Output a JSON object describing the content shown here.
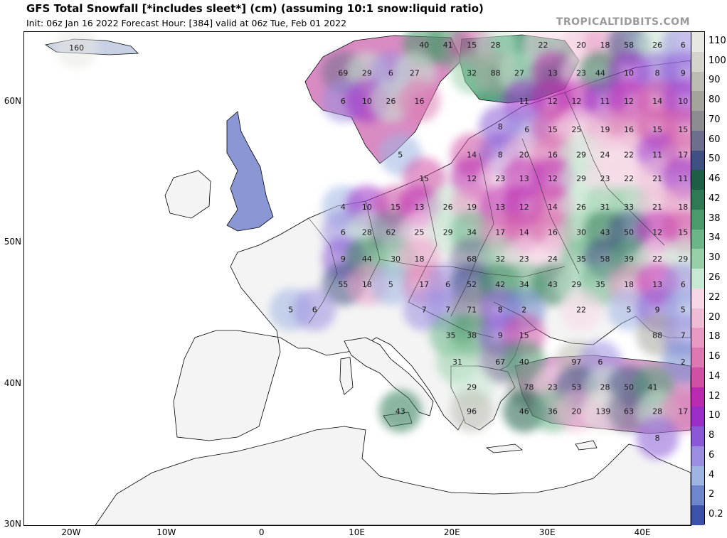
{
  "header": {
    "title": "GFS Total Snowfall [*includes sleet*] (cm) (assuming 10:1 snow:liquid ratio)",
    "subtitle": "Init: 06z Jan 16 2022   Forecast Hour: [384]   valid at 06z Tue, Feb 01 2022",
    "brand": "TROPICALTIDBITS.COM"
  },
  "map": {
    "lon_range": [
      -25,
      45
    ],
    "lat_range": [
      30,
      65
    ],
    "lat_ticks": [
      {
        "label": "60N",
        "lat": 60
      },
      {
        "label": "50N",
        "lat": 50
      },
      {
        "label": "40N",
        "lat": 40
      },
      {
        "label": "30N",
        "lat": 30
      }
    ],
    "lon_ticks": [
      {
        "label": "20W",
        "lon": -20
      },
      {
        "label": "10W",
        "lon": -10
      },
      {
        "label": "0",
        "lon": 0
      },
      {
        "label": "10E",
        "lon": 10
      },
      {
        "label": "20E",
        "lon": 20
      },
      {
        "label": "30E",
        "lon": 30
      },
      {
        "label": "40E",
        "lon": 40
      }
    ],
    "point_values": [
      {
        "v": "160",
        "lon": -19.5,
        "lat": 63.9
      },
      {
        "v": "40",
        "lon": 17,
        "lat": 64.1
      },
      {
        "v": "41",
        "lon": 19.5,
        "lat": 64.1
      },
      {
        "v": "15",
        "lon": 22,
        "lat": 64.1
      },
      {
        "v": "28",
        "lon": 24.5,
        "lat": 64.1
      },
      {
        "v": "22",
        "lon": 29.5,
        "lat": 64.1
      },
      {
        "v": "20",
        "lon": 33.5,
        "lat": 64.1
      },
      {
        "v": "18",
        "lon": 36,
        "lat": 64.1
      },
      {
        "v": "58",
        "lon": 38.5,
        "lat": 64.1
      },
      {
        "v": "26",
        "lon": 41.5,
        "lat": 64.1
      },
      {
        "v": "6",
        "lon": 44.2,
        "lat": 64.1
      },
      {
        "v": "69",
        "lon": 8.5,
        "lat": 62.1
      },
      {
        "v": "29",
        "lon": 11,
        "lat": 62.1
      },
      {
        "v": "6",
        "lon": 13.5,
        "lat": 62.1
      },
      {
        "v": "27",
        "lon": 16,
        "lat": 62.1
      },
      {
        "v": "32",
        "lon": 22,
        "lat": 62.1
      },
      {
        "v": "88",
        "lon": 24.5,
        "lat": 62.1
      },
      {
        "v": "27",
        "lon": 27,
        "lat": 62.1
      },
      {
        "v": "13",
        "lon": 30.5,
        "lat": 62.1
      },
      {
        "v": "23",
        "lon": 33.5,
        "lat": 62.1
      },
      {
        "v": "44",
        "lon": 35.5,
        "lat": 62.1
      },
      {
        "v": "10",
        "lon": 38.5,
        "lat": 62.1
      },
      {
        "v": "8",
        "lon": 41.5,
        "lat": 62.1
      },
      {
        "v": "9",
        "lon": 44.2,
        "lat": 62.1
      },
      {
        "v": "6",
        "lon": 8.5,
        "lat": 60.1
      },
      {
        "v": "10",
        "lon": 11,
        "lat": 60.1
      },
      {
        "v": "26",
        "lon": 13.5,
        "lat": 60.1
      },
      {
        "v": "16",
        "lon": 16.5,
        "lat": 60.1
      },
      {
        "v": "11",
        "lon": 27.5,
        "lat": 60.1
      },
      {
        "v": "12",
        "lon": 30.5,
        "lat": 60.1
      },
      {
        "v": "12",
        "lon": 33,
        "lat": 60.1
      },
      {
        "v": "11",
        "lon": 36,
        "lat": 60.1
      },
      {
        "v": "12",
        "lon": 38.5,
        "lat": 60.1
      },
      {
        "v": "14",
        "lon": 41.5,
        "lat": 60.1
      },
      {
        "v": "10",
        "lon": 44.2,
        "lat": 60.1
      },
      {
        "v": "8",
        "lon": 25,
        "lat": 58.3
      },
      {
        "v": "6",
        "lon": 27.8,
        "lat": 58.1
      },
      {
        "v": "15",
        "lon": 30.5,
        "lat": 58.1
      },
      {
        "v": "25",
        "lon": 33,
        "lat": 58.1
      },
      {
        "v": "19",
        "lon": 36,
        "lat": 58.1
      },
      {
        "v": "16",
        "lon": 38.5,
        "lat": 58.1
      },
      {
        "v": "15",
        "lon": 41.5,
        "lat": 58.1
      },
      {
        "v": "15",
        "lon": 44.2,
        "lat": 58.1
      },
      {
        "v": "5",
        "lon": 14.5,
        "lat": 56.3
      },
      {
        "v": "14",
        "lon": 22,
        "lat": 56.3
      },
      {
        "v": "8",
        "lon": 25,
        "lat": 56.3
      },
      {
        "v": "20",
        "lon": 27.5,
        "lat": 56.3
      },
      {
        "v": "16",
        "lon": 30.5,
        "lat": 56.3
      },
      {
        "v": "29",
        "lon": 33.5,
        "lat": 56.3
      },
      {
        "v": "24",
        "lon": 36,
        "lat": 56.3
      },
      {
        "v": "22",
        "lon": 38.5,
        "lat": 56.3
      },
      {
        "v": "11",
        "lon": 41.5,
        "lat": 56.3
      },
      {
        "v": "17",
        "lon": 44.2,
        "lat": 56.3
      },
      {
        "v": "15",
        "lon": 17,
        "lat": 54.6
      },
      {
        "v": "12",
        "lon": 22,
        "lat": 54.6
      },
      {
        "v": "23",
        "lon": 25,
        "lat": 54.6
      },
      {
        "v": "13",
        "lon": 27.5,
        "lat": 54.6
      },
      {
        "v": "12",
        "lon": 30.5,
        "lat": 54.6
      },
      {
        "v": "29",
        "lon": 33.5,
        "lat": 54.6
      },
      {
        "v": "23",
        "lon": 36,
        "lat": 54.6
      },
      {
        "v": "22",
        "lon": 38.5,
        "lat": 54.6
      },
      {
        "v": "21",
        "lon": 41.5,
        "lat": 54.6
      },
      {
        "v": "11",
        "lon": 44.2,
        "lat": 54.6
      },
      {
        "v": "4",
        "lon": 8.5,
        "lat": 52.6
      },
      {
        "v": "10",
        "lon": 11,
        "lat": 52.6
      },
      {
        "v": "15",
        "lon": 14,
        "lat": 52.6
      },
      {
        "v": "13",
        "lon": 16.5,
        "lat": 52.6
      },
      {
        "v": "26",
        "lon": 19.5,
        "lat": 52.6
      },
      {
        "v": "19",
        "lon": 22,
        "lat": 52.6
      },
      {
        "v": "13",
        "lon": 25,
        "lat": 52.6
      },
      {
        "v": "12",
        "lon": 27.5,
        "lat": 52.6
      },
      {
        "v": "14",
        "lon": 30.5,
        "lat": 52.6
      },
      {
        "v": "26",
        "lon": 33.5,
        "lat": 52.6
      },
      {
        "v": "31",
        "lon": 36,
        "lat": 52.6
      },
      {
        "v": "33",
        "lon": 38.5,
        "lat": 52.6
      },
      {
        "v": "21",
        "lon": 41.5,
        "lat": 52.6
      },
      {
        "v": "18",
        "lon": 44.2,
        "lat": 52.6
      },
      {
        "v": "6",
        "lon": 8.5,
        "lat": 50.8
      },
      {
        "v": "28",
        "lon": 11,
        "lat": 50.8
      },
      {
        "v": "62",
        "lon": 13.5,
        "lat": 50.8
      },
      {
        "v": "25",
        "lon": 16.5,
        "lat": 50.8
      },
      {
        "v": "29",
        "lon": 19.5,
        "lat": 50.8
      },
      {
        "v": "34",
        "lon": 22,
        "lat": 50.8
      },
      {
        "v": "17",
        "lon": 25,
        "lat": 50.8
      },
      {
        "v": "14",
        "lon": 27.5,
        "lat": 50.8
      },
      {
        "v": "16",
        "lon": 30.5,
        "lat": 50.8
      },
      {
        "v": "30",
        "lon": 33.5,
        "lat": 50.8
      },
      {
        "v": "43",
        "lon": 36,
        "lat": 50.8
      },
      {
        "v": "50",
        "lon": 38.5,
        "lat": 50.8
      },
      {
        "v": "12",
        "lon": 41.5,
        "lat": 50.8
      },
      {
        "v": "15",
        "lon": 44.2,
        "lat": 50.8
      },
      {
        "v": "9",
        "lon": 8.5,
        "lat": 48.9
      },
      {
        "v": "44",
        "lon": 11,
        "lat": 48.9
      },
      {
        "v": "30",
        "lon": 14,
        "lat": 48.9
      },
      {
        "v": "18",
        "lon": 16.5,
        "lat": 48.9
      },
      {
        "v": "68",
        "lon": 22,
        "lat": 48.9
      },
      {
        "v": "32",
        "lon": 25,
        "lat": 48.9
      },
      {
        "v": "23",
        "lon": 27.5,
        "lat": 48.9
      },
      {
        "v": "24",
        "lon": 30.5,
        "lat": 48.9
      },
      {
        "v": "35",
        "lon": 33.5,
        "lat": 48.9
      },
      {
        "v": "58",
        "lon": 36,
        "lat": 48.9
      },
      {
        "v": "39",
        "lon": 38.5,
        "lat": 48.9
      },
      {
        "v": "22",
        "lon": 41.5,
        "lat": 48.9
      },
      {
        "v": "29",
        "lon": 44.2,
        "lat": 48.9
      },
      {
        "v": "55",
        "lon": 8.5,
        "lat": 47.1
      },
      {
        "v": "18",
        "lon": 11,
        "lat": 47.1
      },
      {
        "v": "5",
        "lon": 13.5,
        "lat": 47.1
      },
      {
        "v": "17",
        "lon": 17,
        "lat": 47.1
      },
      {
        "v": "6",
        "lon": 19.5,
        "lat": 47.1
      },
      {
        "v": "52",
        "lon": 22,
        "lat": 47.1
      },
      {
        "v": "42",
        "lon": 25,
        "lat": 47.1
      },
      {
        "v": "34",
        "lon": 27.5,
        "lat": 47.1
      },
      {
        "v": "43",
        "lon": 30.5,
        "lat": 47.1
      },
      {
        "v": "29",
        "lon": 33,
        "lat": 47.1
      },
      {
        "v": "35",
        "lon": 35.5,
        "lat": 47.1
      },
      {
        "v": "18",
        "lon": 38.5,
        "lat": 47.1
      },
      {
        "v": "13",
        "lon": 41.5,
        "lat": 47.1
      },
      {
        "v": "6",
        "lon": 44.2,
        "lat": 47.1
      },
      {
        "v": "5",
        "lon": 3,
        "lat": 45.3
      },
      {
        "v": "6",
        "lon": 5.5,
        "lat": 45.3
      },
      {
        "v": "7",
        "lon": 17,
        "lat": 45.3
      },
      {
        "v": "7",
        "lon": 19.5,
        "lat": 45.3
      },
      {
        "v": "71",
        "lon": 22,
        "lat": 45.3
      },
      {
        "v": "8",
        "lon": 25,
        "lat": 45.3
      },
      {
        "v": "2",
        "lon": 27.5,
        "lat": 45.3
      },
      {
        "v": "22",
        "lon": 33.5,
        "lat": 45.3
      },
      {
        "v": "5",
        "lon": 38.5,
        "lat": 45.3
      },
      {
        "v": "9",
        "lon": 41.5,
        "lat": 45.3
      },
      {
        "v": "5",
        "lon": 44.2,
        "lat": 45.3
      },
      {
        "v": "35",
        "lon": 19.8,
        "lat": 43.5
      },
      {
        "v": "38",
        "lon": 22,
        "lat": 43.5
      },
      {
        "v": "9",
        "lon": 25,
        "lat": 43.5
      },
      {
        "v": "15",
        "lon": 27.5,
        "lat": 43.5
      },
      {
        "v": "88",
        "lon": 41.5,
        "lat": 43.5
      },
      {
        "v": "7",
        "lon": 44.2,
        "lat": 43.5
      },
      {
        "v": "31",
        "lon": 20.5,
        "lat": 41.6
      },
      {
        "v": "67",
        "lon": 25,
        "lat": 41.6
      },
      {
        "v": "40",
        "lon": 27.5,
        "lat": 41.6
      },
      {
        "v": "97",
        "lon": 33,
        "lat": 41.6
      },
      {
        "v": "6",
        "lon": 35.5,
        "lat": 41.6
      },
      {
        "v": "2",
        "lon": 44.2,
        "lat": 41.6
      },
      {
        "v": "29",
        "lon": 22,
        "lat": 39.8
      },
      {
        "v": "78",
        "lon": 28,
        "lat": 39.8
      },
      {
        "v": "23",
        "lon": 30.5,
        "lat": 39.8
      },
      {
        "v": "53",
        "lon": 33,
        "lat": 39.8
      },
      {
        "v": "28",
        "lon": 36,
        "lat": 39.8
      },
      {
        "v": "50",
        "lon": 38.5,
        "lat": 39.8
      },
      {
        "v": "41",
        "lon": 41,
        "lat": 39.8
      },
      {
        "v": "43",
        "lon": 14.5,
        "lat": 38.1
      },
      {
        "v": "96",
        "lon": 22,
        "lat": 38.1
      },
      {
        "v": "46",
        "lon": 27.5,
        "lat": 38.1
      },
      {
        "v": "36",
        "lon": 30.5,
        "lat": 38.1
      },
      {
        "v": "20",
        "lon": 33,
        "lat": 38.1
      },
      {
        "v": "139",
        "lon": 35.8,
        "lat": 38.1
      },
      {
        "v": "63",
        "lon": 38.5,
        "lat": 38.1
      },
      {
        "v": "28",
        "lon": 41.5,
        "lat": 38.1
      },
      {
        "v": "17",
        "lon": 44.2,
        "lat": 38.1
      },
      {
        "v": "8",
        "lon": 41.5,
        "lat": 36.2
      }
    ]
  },
  "colorbar": {
    "levels": [
      {
        "label": "110",
        "color": "#e8e8e2"
      },
      {
        "label": "100",
        "color": "#d4d4cc"
      },
      {
        "label": "90",
        "color": "#bcbcb2"
      },
      {
        "label": "80",
        "color": "#a4a49c"
      },
      {
        "label": "70",
        "color": "#8c8c90"
      },
      {
        "label": "60",
        "color": "#6e6e8e"
      },
      {
        "label": "50",
        "color": "#3e4f82"
      },
      {
        "label": "46",
        "color": "#1f5e46"
      },
      {
        "label": "42",
        "color": "#2f7a55"
      },
      {
        "label": "38",
        "color": "#4a9a6c"
      },
      {
        "label": "34",
        "color": "#6bb588"
      },
      {
        "label": "30",
        "color": "#97d0a8"
      },
      {
        "label": "26",
        "color": "#c7e8d2"
      },
      {
        "label": "22",
        "color": "#f7d7e6"
      },
      {
        "label": "20",
        "color": "#efbcd6"
      },
      {
        "label": "18",
        "color": "#e79bc4"
      },
      {
        "label": "16",
        "color": "#dc79b2"
      },
      {
        "label": "14",
        "color": "#d050a6"
      },
      {
        "label": "12",
        "color": "#bb2bb0"
      },
      {
        "label": "10",
        "color": "#9a2cc8"
      },
      {
        "label": "8",
        "color": "#8a5ad6"
      },
      {
        "label": "6",
        "color": "#9b8ee0"
      },
      {
        "label": "4",
        "color": "#9eb4e2"
      },
      {
        "label": "2",
        "color": "#6f86cc"
      },
      {
        "label": "0.2",
        "color": "#3b52a8"
      }
    ]
  }
}
